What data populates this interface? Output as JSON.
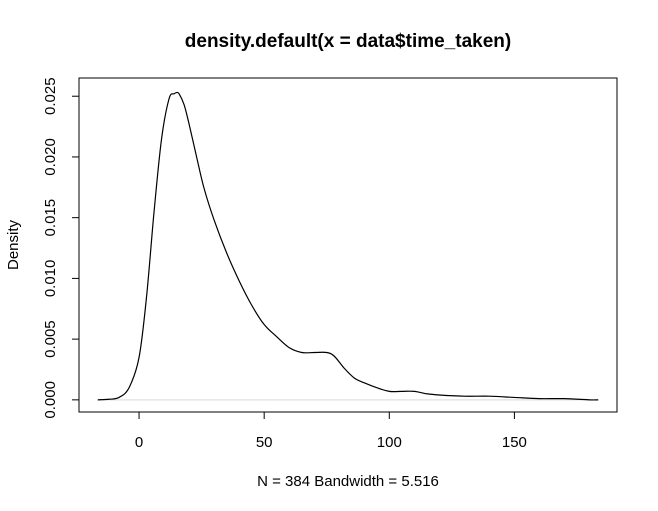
{
  "chart_data": {
    "type": "line",
    "title": "density.default(x = data$time_taken)",
    "xlabel": "N = 384   Bandwidth = 5.516",
    "ylabel": "Density",
    "xlim": [
      -24,
      191
    ],
    "ylim": [
      -0.001,
      0.0265
    ],
    "x_ticks": [
      0,
      50,
      100,
      150
    ],
    "x_tick_labels": [
      "0",
      "50",
      "100",
      "150"
    ],
    "y_ticks": [
      0,
      0.005,
      0.01,
      0.015,
      0.02,
      0.025
    ],
    "y_tick_labels": [
      "0.000",
      "0.005",
      "0.010",
      "0.015",
      "0.020",
      "0.025"
    ],
    "grid": false,
    "baseline": 0,
    "series": [
      {
        "x": [
          -16.5,
          -12,
          -8,
          -4,
          0,
          3,
          6,
          9,
          12,
          14,
          15,
          16,
          18,
          20,
          23,
          26,
          30,
          35,
          40,
          45,
          50,
          55,
          60,
          65,
          70,
          75,
          78,
          82,
          86,
          90,
          95,
          100,
          105,
          110,
          115,
          120,
          130,
          140,
          150,
          160,
          170,
          180,
          183.5
        ],
        "y": [
          0.0,
          5e-05,
          0.0002,
          0.001,
          0.0035,
          0.0085,
          0.0155,
          0.0215,
          0.0248,
          0.0252,
          0.0253,
          0.0252,
          0.0243,
          0.0227,
          0.02,
          0.0174,
          0.0148,
          0.0121,
          0.0098,
          0.0078,
          0.0062,
          0.0052,
          0.0043,
          0.0039,
          0.0039,
          0.0039,
          0.0036,
          0.0026,
          0.0018,
          0.0014,
          0.001,
          0.0007,
          0.0007,
          0.0007,
          0.0005,
          0.0004,
          0.0003,
          0.0003,
          0.0002,
          0.0001,
          0.0001,
          0.0,
          0.0
        ]
      }
    ]
  }
}
